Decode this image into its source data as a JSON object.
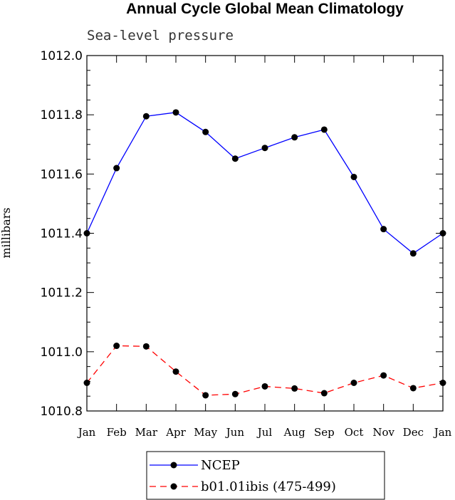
{
  "chart_data": {
    "type": "line",
    "title": "Annual Cycle Global Mean Climatology",
    "subtitle": "Sea-level pressure",
    "xlabel": "",
    "ylabel": "millibars",
    "categories": [
      "Jan",
      "Feb",
      "Mar",
      "Apr",
      "May",
      "Jun",
      "Jul",
      "Aug",
      "Sep",
      "Oct",
      "Nov",
      "Dec",
      "Jan"
    ],
    "ylim": [
      1010.8,
      1012.0
    ],
    "yticks": [
      "1010.8",
      "1011.0",
      "1011.2",
      "1011.4",
      "1011.6",
      "1011.8",
      "1012.0"
    ],
    "grid": false,
    "legend_position": "bottom",
    "series": [
      {
        "name": "NCEP",
        "color": "#0000ff",
        "dash": "solid",
        "values": [
          1011.4,
          1011.62,
          1011.795,
          1011.808,
          1011.742,
          1011.652,
          1011.688,
          1011.724,
          1011.75,
          1011.59,
          1011.414,
          1011.332,
          1011.4
        ]
      },
      {
        "name": "b01.01ibis (475-499)",
        "color": "#ff0000",
        "dash": "dashed",
        "values": [
          1010.895,
          1011.02,
          1011.018,
          1010.933,
          1010.853,
          1010.857,
          1010.883,
          1010.876,
          1010.86,
          1010.895,
          1010.92,
          1010.877,
          1010.895
        ]
      }
    ]
  }
}
